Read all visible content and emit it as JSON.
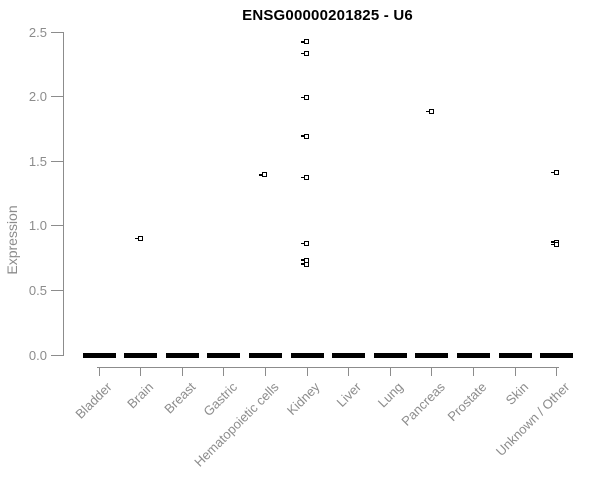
{
  "chart_data": {
    "type": "boxplot-strip",
    "title": "ENSG00000201825 - U6",
    "ylabel": "Expression",
    "xlabel": "",
    "ylim": [
      0.0,
      2.5
    ],
    "yticks": [
      0.0,
      0.5,
      1.0,
      1.5,
      2.0,
      2.5
    ],
    "grid": false,
    "legend": false,
    "categories": [
      "Bladder",
      "Brain",
      "Breast",
      "Gastric",
      "Hematopoietic cells",
      "Kidney",
      "Liver",
      "Lung",
      "Pancreas",
      "Prostate",
      "Skin",
      "Unknown / Other"
    ],
    "median_bars": [
      0,
      0,
      0,
      0,
      0,
      0,
      0,
      0,
      0,
      0,
      0,
      0
    ],
    "outlier_points": [
      {
        "category": "Brain",
        "values": [
          0.9
        ]
      },
      {
        "category": "Hematopoietic cells",
        "values": [
          1.39
        ]
      },
      {
        "category": "Kidney",
        "values": [
          2.42,
          2.33,
          1.99,
          1.69,
          1.37,
          0.86,
          0.73,
          0.7
        ]
      },
      {
        "category": "Pancreas",
        "values": [
          1.88
        ]
      },
      {
        "category": "Unknown / Other",
        "values": [
          1.41,
          0.87,
          0.85
        ]
      }
    ],
    "text_color": "#8c8c8c",
    "axis_color": "#8c8c8c",
    "point_color": "#000000",
    "median_bar_color": "#000000",
    "title_color": "#000000"
  }
}
